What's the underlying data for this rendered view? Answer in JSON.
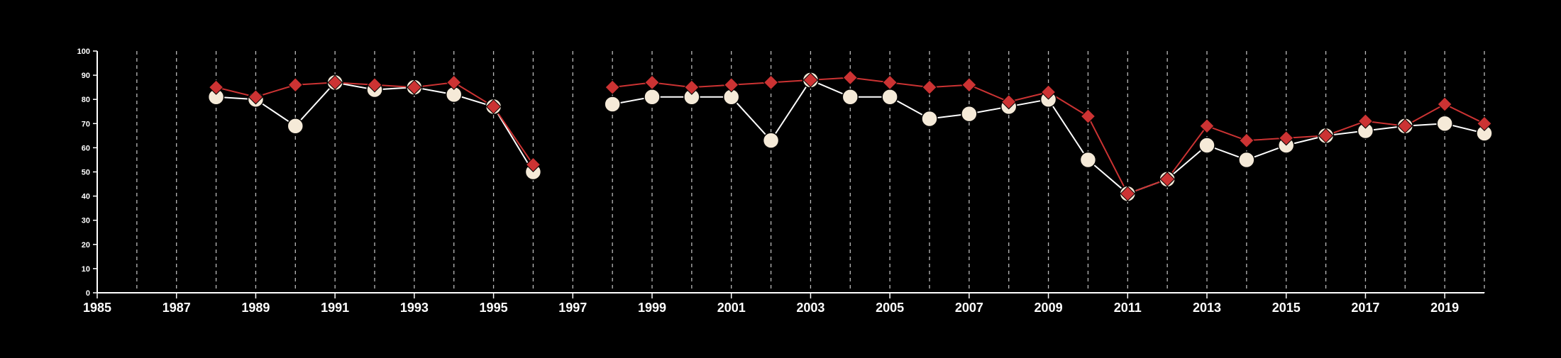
{
  "chart_data": {
    "type": "line",
    "title": "",
    "xlabel": "",
    "ylabel": "",
    "xlim": [
      1985,
      2020
    ],
    "ylim": [
      0,
      100
    ],
    "y_ticks": [
      0,
      10,
      20,
      30,
      40,
      50,
      60,
      70,
      80,
      90,
      100
    ],
    "x_tick_labels": [
      "1985",
      "1987",
      "1989",
      "1991",
      "1993",
      "1995",
      "1997",
      "1999",
      "2001",
      "2003",
      "2005",
      "2007",
      "2009",
      "2011",
      "2013",
      "2015",
      "2017",
      "2019"
    ],
    "vertical_gridlines": "dashed, every year from 1986 to 2020",
    "legend": "none",
    "series": [
      {
        "marker": "circle",
        "color": "#f5ead8",
        "line_color": "#ffffff",
        "segments": [
          {
            "x": [
              1988,
              1989,
              1990,
              1991,
              1992,
              1993,
              1994,
              1995,
              1996
            ],
            "y": [
              81,
              80,
              69,
              87,
              84,
              85,
              82,
              77,
              50
            ]
          },
          {
            "x": [
              1998,
              1999,
              2000,
              2001,
              2002,
              2003,
              2004,
              2005,
              2006,
              2007,
              2008,
              2009,
              2010,
              2011,
              2012,
              2013,
              2014,
              2015,
              2016,
              2017,
              2018,
              2019,
              2020
            ],
            "y": [
              78,
              81,
              81,
              81,
              63,
              88,
              81,
              81,
              72,
              74,
              77,
              80,
              55,
              41,
              47,
              61,
              55,
              61,
              65,
              67,
              69,
              70,
              66
            ]
          }
        ]
      },
      {
        "marker": "diamond",
        "color": "#cc3333",
        "line_color": "#cc3333",
        "segments": [
          {
            "x": [
              1988,
              1989,
              1990,
              1991,
              1992,
              1993,
              1994,
              1995,
              1996
            ],
            "y": [
              85,
              81,
              86,
              87,
              86,
              85,
              87,
              77,
              53
            ]
          },
          {
            "x": [
              1998,
              1999,
              2000,
              2001,
              2002,
              2003,
              2004,
              2005,
              2006,
              2007,
              2008,
              2009,
              2010,
              2011,
              2012,
              2013,
              2014,
              2015,
              2016,
              2017,
              2018,
              2019,
              2020
            ],
            "y": [
              85,
              87,
              85,
              86,
              87,
              88,
              89,
              87,
              85,
              86,
              79,
              83,
              73,
              41,
              47,
              69,
              63,
              64,
              65,
              71,
              69,
              78,
              70
            ]
          }
        ]
      }
    ]
  }
}
